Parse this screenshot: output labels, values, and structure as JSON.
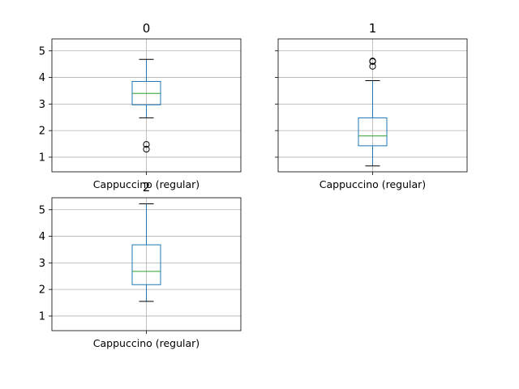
{
  "chart_data": [
    {
      "type": "box",
      "title": "0",
      "categories": [
        "Cappuccino (regular)"
      ],
      "ylim": [
        0.45,
        5.45
      ],
      "yticks": [
        1,
        2,
        3,
        4,
        5
      ],
      "grid": true,
      "box": {
        "whisker_low": 2.48,
        "q1": 2.97,
        "median": 3.4,
        "q3": 3.85,
        "whisker_high": 4.68,
        "outliers": [
          1.48,
          1.3
        ]
      }
    },
    {
      "type": "box",
      "title": "1",
      "categories": [
        "Cappuccino (regular)"
      ],
      "ylim": [
        0.45,
        5.45
      ],
      "yticks": [
        1,
        2,
        3,
        4,
        5
      ],
      "grid": true,
      "box": {
        "whisker_low": 0.67,
        "q1": 1.43,
        "median": 1.8,
        "q3": 2.48,
        "whisker_high": 3.88,
        "outliers": [
          4.42,
          4.6,
          4.62
        ]
      }
    },
    {
      "type": "box",
      "title": "2",
      "categories": [
        "Cappuccino (regular)"
      ],
      "ylim": [
        0.45,
        5.45
      ],
      "yticks": [
        1,
        2,
        3,
        4,
        5
      ],
      "grid": true,
      "box": {
        "whisker_low": 1.55,
        "q1": 2.18,
        "median": 2.68,
        "q3": 3.68,
        "whisker_high": 5.22,
        "outliers": []
      }
    }
  ],
  "colors": {
    "box": "#1f77b4",
    "median": "#2ca02c",
    "grid": "#b0b0b0",
    "axis": "#000000"
  }
}
